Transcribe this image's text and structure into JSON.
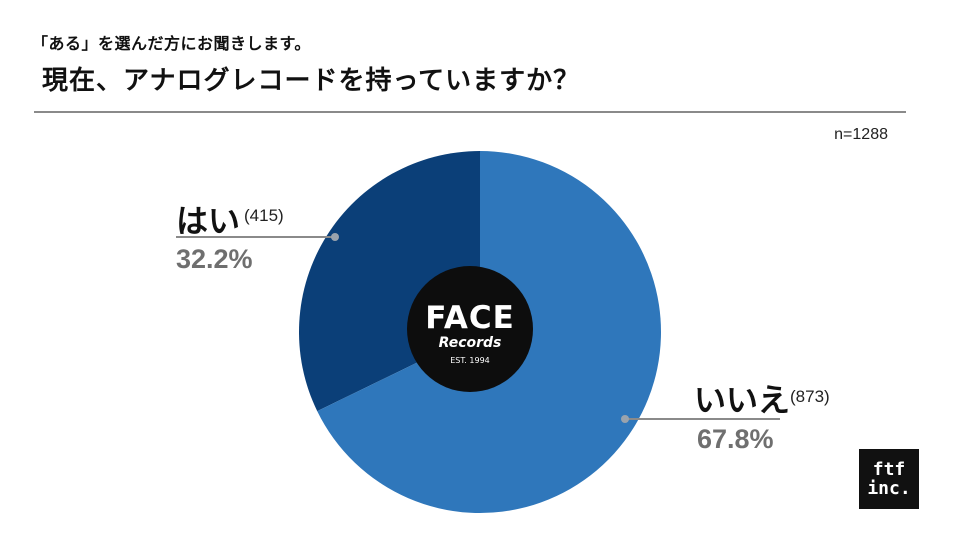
{
  "header": {
    "subtitle": "「ある」を選んだ方にお聞きします。",
    "title": "現在、アナログレコードを持っていますか？"
  },
  "sample_size": "n=1288",
  "logo": {
    "name": "FACE",
    "script": "Records",
    "est": "EST. 1994"
  },
  "badge": {
    "line1": "ftf",
    "line2": "inc."
  },
  "colors": {
    "yes_slice": "#0b3f78",
    "no_slice": "#2f77bb",
    "center": "#0d0d0d",
    "leader": "#8a8a8a",
    "dot": "#9aa3ad"
  },
  "chart_data": {
    "type": "pie",
    "title": "現在、アナログレコードを持っていますか？",
    "total_label": "n=1288",
    "slices": [
      {
        "label": "はい",
        "count": "(415)",
        "percent_label": "32.2%",
        "value": 32.2
      },
      {
        "label": "いいえ",
        "count": "(873)",
        "percent_label": "67.8%",
        "value": 67.8
      }
    ]
  }
}
